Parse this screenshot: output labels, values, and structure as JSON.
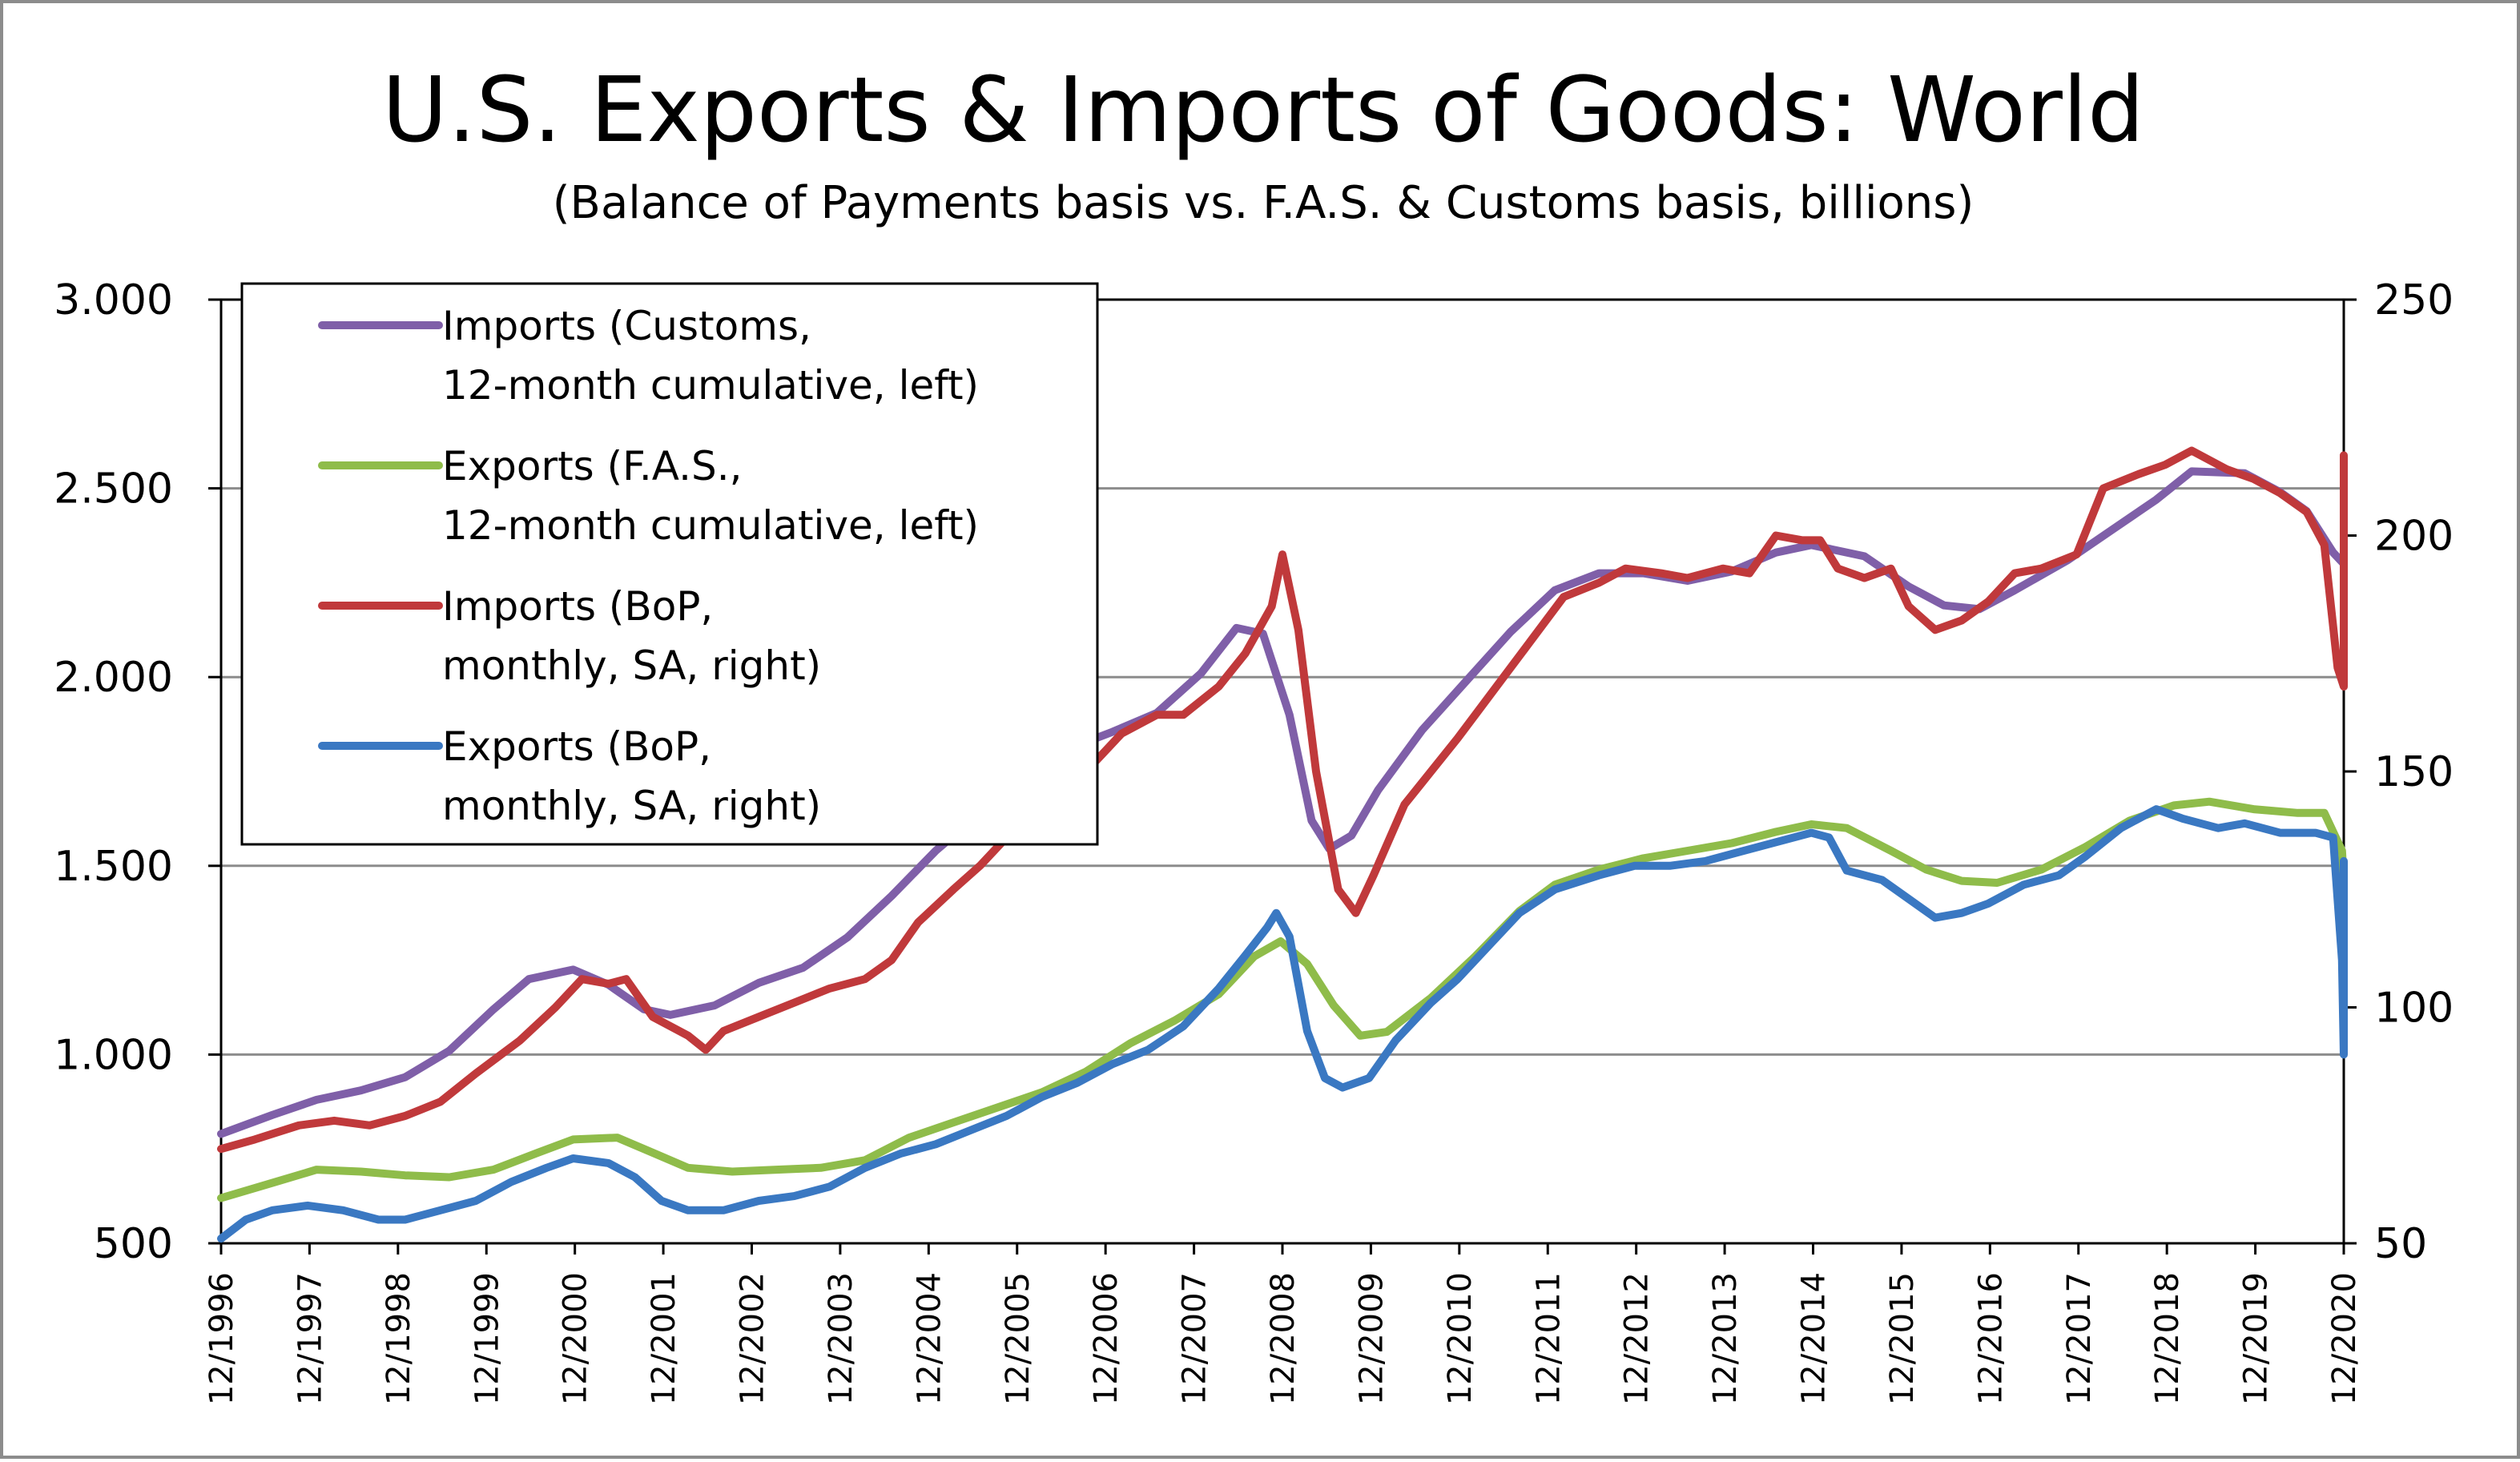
{
  "chart_data": {
    "type": "line",
    "title": "U.S. Exports & Imports of Goods: World",
    "subtitle": "(Balance of Payments basis vs. F.A.S. & Customs basis, billions)",
    "left_axis": {
      "ylim": [
        500,
        3000
      ],
      "ticks": [
        "3.000",
        "2.500",
        "2.000",
        "1.500",
        "1.000",
        "500"
      ]
    },
    "right_axis": {
      "ylim": [
        50,
        250
      ],
      "ticks": [
        "250",
        "200",
        "150",
        "100",
        "50"
      ]
    },
    "x_ticks": [
      "12/1996",
      "12/1997",
      "12/1998",
      "12/1999",
      "12/2000",
      "12/2001",
      "12/2002",
      "12/2003",
      "12/2004",
      "12/2005",
      "12/2006",
      "12/2007",
      "12/2008",
      "12/2009",
      "12/2010",
      "12/2011",
      "12/2012",
      "12/2013",
      "12/2014",
      "12/2015",
      "12/2016",
      "12/2017",
      "12/2018",
      "12/2019",
      "12/2020"
    ],
    "x_range": [
      1996.92,
      2020.92
    ],
    "grid": true,
    "legend_position": "top-left",
    "series": [
      {
        "name": "Imports (Customs, 12-month cumulative, left)",
        "name_lines": [
          "Imports (Customs,",
          "12-month cumulative, left)"
        ],
        "axis": "left",
        "color": "#7f5fa8",
        "points": [
          [
            1996.92,
            790
          ],
          [
            1997.5,
            840
          ],
          [
            1998.0,
            880
          ],
          [
            1998.5,
            905
          ],
          [
            1999.0,
            940
          ],
          [
            1999.5,
            1010
          ],
          [
            2000.0,
            1120
          ],
          [
            2000.4,
            1200
          ],
          [
            2000.9,
            1225
          ],
          [
            2001.3,
            1185
          ],
          [
            2001.7,
            1120
          ],
          [
            2002.0,
            1105
          ],
          [
            2002.5,
            1130
          ],
          [
            2003.0,
            1190
          ],
          [
            2003.5,
            1230
          ],
          [
            2004.0,
            1310
          ],
          [
            2004.5,
            1420
          ],
          [
            2005.0,
            1540
          ],
          [
            2005.5,
            1640
          ],
          [
            2006.0,
            1740
          ],
          [
            2006.5,
            1810
          ],
          [
            2007.0,
            1855
          ],
          [
            2007.5,
            1905
          ],
          [
            2008.0,
            2010
          ],
          [
            2008.4,
            2130
          ],
          [
            2008.7,
            2115
          ],
          [
            2009.0,
            1900
          ],
          [
            2009.25,
            1620
          ],
          [
            2009.45,
            1545
          ],
          [
            2009.7,
            1580
          ],
          [
            2010.0,
            1700
          ],
          [
            2010.5,
            1860
          ],
          [
            2011.0,
            1990
          ],
          [
            2011.5,
            2120
          ],
          [
            2012.0,
            2230
          ],
          [
            2012.5,
            2275
          ],
          [
            2013.0,
            2275
          ],
          [
            2013.5,
            2255
          ],
          [
            2014.0,
            2280
          ],
          [
            2014.5,
            2330
          ],
          [
            2014.9,
            2350
          ],
          [
            2015.5,
            2320
          ],
          [
            2016.0,
            2240
          ],
          [
            2016.4,
            2190
          ],
          [
            2016.8,
            2180
          ],
          [
            2017.2,
            2230
          ],
          [
            2017.8,
            2310
          ],
          [
            2018.3,
            2390
          ],
          [
            2018.8,
            2470
          ],
          [
            2019.2,
            2545
          ],
          [
            2019.8,
            2540
          ],
          [
            2020.2,
            2490
          ],
          [
            2020.5,
            2440
          ],
          [
            2020.8,
            2330
          ],
          [
            2021.1,
            2300
          ],
          [
            2021.5,
            2300
          ],
          [
            2021.92,
            2340
          ]
        ]
      },
      {
        "name": "Exports (F.A.S., 12-month cumulative, left)",
        "name_lines": [
          "Exports (F.A.S.,",
          "12-month cumulative, left)"
        ],
        "axis": "left",
        "color": "#8fbc4a",
        "points": [
          [
            1996.92,
            620
          ],
          [
            1997.5,
            660
          ],
          [
            1998.0,
            695
          ],
          [
            1998.5,
            690
          ],
          [
            1999.0,
            680
          ],
          [
            1999.5,
            675
          ],
          [
            2000.0,
            695
          ],
          [
            2000.5,
            740
          ],
          [
            2000.9,
            775
          ],
          [
            2001.4,
            780
          ],
          [
            2001.8,
            740
          ],
          [
            2002.2,
            700
          ],
          [
            2002.7,
            690
          ],
          [
            2003.2,
            695
          ],
          [
            2003.7,
            700
          ],
          [
            2004.2,
            720
          ],
          [
            2004.7,
            780
          ],
          [
            2005.2,
            820
          ],
          [
            2005.7,
            860
          ],
          [
            2006.2,
            900
          ],
          [
            2006.7,
            955
          ],
          [
            2007.2,
            1030
          ],
          [
            2007.7,
            1090
          ],
          [
            2008.2,
            1160
          ],
          [
            2008.6,
            1260
          ],
          [
            2008.9,
            1300
          ],
          [
            2009.2,
            1240
          ],
          [
            2009.5,
            1130
          ],
          [
            2009.8,
            1050
          ],
          [
            2010.1,
            1060
          ],
          [
            2010.6,
            1150
          ],
          [
            2011.1,
            1260
          ],
          [
            2011.6,
            1380
          ],
          [
            2012.0,
            1450
          ],
          [
            2012.5,
            1490
          ],
          [
            2013.0,
            1520
          ],
          [
            2013.5,
            1540
          ],
          [
            2014.0,
            1560
          ],
          [
            2014.5,
            1590
          ],
          [
            2014.9,
            1610
          ],
          [
            2015.3,
            1600
          ],
          [
            2015.8,
            1540
          ],
          [
            2016.2,
            1490
          ],
          [
            2016.6,
            1460
          ],
          [
            2017.0,
            1455
          ],
          [
            2017.5,
            1490
          ],
          [
            2018.0,
            1550
          ],
          [
            2018.5,
            1620
          ],
          [
            2019.0,
            1660
          ],
          [
            2019.4,
            1670
          ],
          [
            2019.9,
            1650
          ],
          [
            2020.4,
            1640
          ],
          [
            2020.7,
            1640
          ],
          [
            2020.9,
            1540
          ],
          [
            2021.3,
            1460
          ],
          [
            2021.6,
            1440
          ],
          [
            2021.92,
            1420
          ]
        ]
      },
      {
        "name": "Imports (BoP, monthly, SA, right)",
        "name_lines": [
          "Imports (BoP,",
          "monthly, SA, right)"
        ],
        "axis": "right",
        "color": "#c0393b",
        "points": [
          [
            1996.92,
            70
          ],
          [
            1997.3,
            72
          ],
          [
            1997.8,
            75
          ],
          [
            1998.2,
            76
          ],
          [
            1998.6,
            75
          ],
          [
            1999.0,
            77
          ],
          [
            1999.4,
            80
          ],
          [
            1999.8,
            86
          ],
          [
            2000.3,
            93
          ],
          [
            2000.7,
            100
          ],
          [
            2001.0,
            106
          ],
          [
            2001.3,
            105
          ],
          [
            2001.5,
            106
          ],
          [
            2001.8,
            98
          ],
          [
            2002.2,
            94
          ],
          [
            2002.4,
            91
          ],
          [
            2002.6,
            95
          ],
          [
            2003.0,
            98
          ],
          [
            2003.4,
            101
          ],
          [
            2003.8,
            104
          ],
          [
            2004.2,
            106
          ],
          [
            2004.5,
            110
          ],
          [
            2004.8,
            118
          ],
          [
            2005.2,
            125
          ],
          [
            2005.5,
            130
          ],
          [
            2005.9,
            138
          ],
          [
            2006.3,
            143
          ],
          [
            2006.7,
            150
          ],
          [
            2007.1,
            158
          ],
          [
            2007.5,
            162
          ],
          [
            2007.8,
            162
          ],
          [
            2008.2,
            168
          ],
          [
            2008.5,
            175
          ],
          [
            2008.8,
            185
          ],
          [
            2008.92,
            196
          ],
          [
            2009.1,
            180
          ],
          [
            2009.3,
            150
          ],
          [
            2009.55,
            125
          ],
          [
            2009.75,
            120
          ],
          [
            2009.95,
            128
          ],
          [
            2010.3,
            143
          ],
          [
            2010.6,
            150
          ],
          [
            2010.9,
            157
          ],
          [
            2011.3,
            167
          ],
          [
            2011.7,
            177
          ],
          [
            2012.1,
            187
          ],
          [
            2012.5,
            190
          ],
          [
            2012.8,
            193
          ],
          [
            2013.2,
            192
          ],
          [
            2013.5,
            191
          ],
          [
            2013.9,
            193
          ],
          [
            2014.2,
            192
          ],
          [
            2014.5,
            200
          ],
          [
            2014.8,
            199
          ],
          [
            2015.0,
            199
          ],
          [
            2015.2,
            193
          ],
          [
            2015.5,
            191
          ],
          [
            2015.8,
            193
          ],
          [
            2016.0,
            185
          ],
          [
            2016.3,
            180
          ],
          [
            2016.6,
            182
          ],
          [
            2016.9,
            186
          ],
          [
            2017.2,
            192
          ],
          [
            2017.5,
            193
          ],
          [
            2017.9,
            196
          ],
          [
            2018.2,
            210
          ],
          [
            2018.6,
            213
          ],
          [
            2018.9,
            215
          ],
          [
            2019.2,
            218
          ],
          [
            2019.6,
            214
          ],
          [
            2019.9,
            212
          ],
          [
            2020.2,
            209
          ],
          [
            2020.5,
            205
          ],
          [
            2020.7,
            198
          ],
          [
            2020.85,
            172
          ],
          [
            2021.0,
            168
          ],
          [
            2021.2,
            200
          ],
          [
            2021.5,
            203
          ],
          [
            2021.7,
            210
          ],
          [
            2021.92,
            217
          ]
        ]
      },
      {
        "name": "Exports (BoP, monthly, SA, right)",
        "name_lines": [
          "Exports (BoP,",
          "monthly, SA, right)"
        ],
        "axis": "right",
        "color": "#3a78c2",
        "points": [
          [
            1996.92,
            51
          ],
          [
            1997.2,
            55
          ],
          [
            1997.5,
            57
          ],
          [
            1997.9,
            58
          ],
          [
            1998.3,
            57
          ],
          [
            1998.7,
            55
          ],
          [
            1999.0,
            55
          ],
          [
            1999.4,
            57
          ],
          [
            1999.8,
            59
          ],
          [
            2000.2,
            63
          ],
          [
            2000.6,
            66
          ],
          [
            2000.9,
            68
          ],
          [
            2001.3,
            67
          ],
          [
            2001.6,
            64
          ],
          [
            2001.9,
            59
          ],
          [
            2002.2,
            57
          ],
          [
            2002.6,
            57
          ],
          [
            2003.0,
            59
          ],
          [
            2003.4,
            60
          ],
          [
            2003.8,
            62
          ],
          [
            2004.2,
            66
          ],
          [
            2004.6,
            69
          ],
          [
            2005.0,
            71
          ],
          [
            2005.4,
            74
          ],
          [
            2005.8,
            77
          ],
          [
            2006.2,
            81
          ],
          [
            2006.6,
            84
          ],
          [
            2007.0,
            88
          ],
          [
            2007.4,
            91
          ],
          [
            2007.8,
            96
          ],
          [
            2008.2,
            104
          ],
          [
            2008.5,
            111
          ],
          [
            2008.75,
            117
          ],
          [
            2008.85,
            120
          ],
          [
            2009.0,
            115
          ],
          [
            2009.2,
            95
          ],
          [
            2009.4,
            85
          ],
          [
            2009.6,
            83
          ],
          [
            2009.9,
            85
          ],
          [
            2010.2,
            93
          ],
          [
            2010.6,
            101
          ],
          [
            2010.9,
            106
          ],
          [
            2011.3,
            114
          ],
          [
            2011.6,
            120
          ],
          [
            2012.0,
            125
          ],
          [
            2012.5,
            128
          ],
          [
            2012.9,
            130
          ],
          [
            2013.3,
            130
          ],
          [
            2013.7,
            131
          ],
          [
            2014.1,
            133
          ],
          [
            2014.5,
            135
          ],
          [
            2014.9,
            137
          ],
          [
            2015.1,
            136
          ],
          [
            2015.3,
            129
          ],
          [
            2015.7,
            127
          ],
          [
            2016.0,
            123
          ],
          [
            2016.3,
            119
          ],
          [
            2016.6,
            120
          ],
          [
            2016.9,
            122
          ],
          [
            2017.3,
            126
          ],
          [
            2017.7,
            128
          ],
          [
            2018.0,
            132
          ],
          [
            2018.4,
            138
          ],
          [
            2018.8,
            142
          ],
          [
            2019.1,
            140
          ],
          [
            2019.5,
            138
          ],
          [
            2019.8,
            139
          ],
          [
            2020.2,
            137
          ],
          [
            2020.6,
            137
          ],
          [
            2020.8,
            136
          ],
          [
            2020.9,
            110
          ],
          [
            2021.05,
            90
          ],
          [
            2021.3,
            110
          ],
          [
            2021.6,
            120
          ],
          [
            2021.8,
            128
          ],
          [
            2021.92,
            131
          ]
        ]
      }
    ]
  }
}
